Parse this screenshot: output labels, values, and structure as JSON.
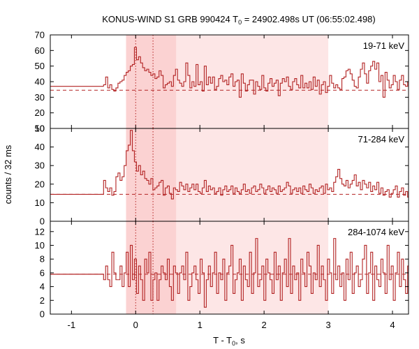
{
  "chart_data": {
    "type": "line",
    "title_main": "KONUS-WIND S1 GRB 990424 T",
    "title_sub": "0",
    "title_rest": " = 24902.498s UT (06:55:02.498)",
    "xlabel_main": "T - T",
    "xlabel_sub": "0",
    "xlabel_rest": ", s",
    "ylabel": "counts / 32 ms",
    "xlim": [
      -1.33,
      4.25
    ],
    "x_ticks": [
      -1,
      0,
      1,
      2,
      3,
      4
    ],
    "x_tick_labels": [
      "-1",
      "0",
      "1",
      "2",
      "3",
      "4"
    ],
    "bin_width": 0.032,
    "shaded_regions": [
      {
        "from": -0.15,
        "to": 3.0,
        "color": "#fde6e6"
      },
      {
        "from": -0.15,
        "to": 0.63,
        "color": "#fbd2d2"
      }
    ],
    "markers": [
      0.0,
      0.27
    ],
    "line_color": "#b22222",
    "panels": [
      {
        "name": "19-71 keV",
        "ylim": [
          10,
          70
        ],
        "y_ticks": [
          10,
          20,
          30,
          40,
          50,
          60,
          70
        ],
        "y_tick_labels": [
          "10",
          "20",
          "30",
          "40",
          "50",
          "60",
          "70"
        ],
        "background_level": 34.5,
        "pre_level": 37.0,
        "values": [
          38,
          43,
          36,
          38,
          35,
          34,
          36,
          39,
          40,
          41,
          44,
          46,
          47,
          50,
          51,
          62,
          54,
          56,
          52,
          49,
          47,
          48,
          46,
          44,
          45,
          42,
          43,
          47,
          44,
          36,
          38,
          39,
          40,
          37,
          44,
          48,
          41,
          39,
          37,
          40,
          52,
          44,
          36,
          40,
          37,
          51,
          38,
          40,
          34,
          50,
          38,
          43,
          39,
          43,
          35,
          37,
          42,
          44,
          40,
          41,
          38,
          43,
          45,
          37,
          40,
          41,
          30,
          45,
          39,
          34,
          38,
          41,
          41,
          32,
          40,
          37,
          35,
          44,
          36,
          34,
          39,
          42,
          37,
          39,
          41,
          31,
          39,
          42,
          40,
          43,
          37,
          35,
          40,
          42,
          38,
          36,
          44,
          36,
          39,
          36,
          40,
          35,
          43,
          37,
          41,
          32,
          38,
          40,
          33,
          37,
          44,
          39,
          36,
          38,
          36,
          35,
          42,
          43,
          47,
          48,
          45,
          41,
          37,
          36,
          43,
          48,
          52,
          45,
          39,
          47,
          50,
          53,
          48,
          52,
          40,
          44,
          30,
          46,
          41,
          36,
          38,
          44,
          40,
          35,
          41,
          44,
          38,
          37,
          40,
          39,
          42,
          45,
          34,
          38,
          39,
          42,
          44,
          40,
          44
        ]
      },
      {
        "name": "71-284 keV",
        "ylim": [
          0,
          50
        ],
        "y_ticks": [
          0,
          10,
          20,
          30,
          40,
          50
        ],
        "y_tick_labels": [
          "0",
          "10",
          "20",
          "30",
          "40",
          "50"
        ],
        "background_level": 14.5,
        "pre_level": 14.5,
        "values": [
          22,
          18,
          16,
          18,
          14,
          16,
          24,
          26,
          22,
          24,
          30,
          38,
          41,
          49,
          38,
          32,
          27,
          30,
          25,
          27,
          23,
          22,
          20,
          23,
          17,
          18,
          19,
          21,
          22,
          14,
          18,
          19,
          15,
          12,
          18,
          17,
          16,
          21,
          19,
          17,
          20,
          16,
          18,
          20,
          17,
          20,
          16,
          15,
          18,
          22,
          16,
          19,
          17,
          18,
          15,
          16,
          18,
          14,
          17,
          19,
          16,
          17,
          19,
          15,
          18,
          16,
          15,
          17,
          20,
          16,
          17,
          15,
          18,
          19,
          16,
          17,
          20,
          18,
          15,
          17,
          19,
          16,
          18,
          17,
          15,
          19,
          16,
          17,
          18,
          21,
          19,
          15,
          17,
          18,
          16,
          18,
          15,
          19,
          17,
          16,
          20,
          18,
          15,
          17,
          16,
          18,
          19,
          15,
          20,
          17,
          18,
          16,
          21,
          24,
          28,
          23,
          20,
          19,
          22,
          18,
          20,
          22,
          25,
          19,
          21,
          17,
          22,
          20,
          18,
          21,
          16,
          19,
          17,
          21,
          15,
          18,
          14,
          16,
          17,
          13,
          15,
          17,
          19,
          13,
          16,
          18,
          14,
          16,
          13,
          16,
          17,
          20,
          15,
          14,
          17,
          20,
          15,
          17,
          19
        ]
      },
      {
        "name": "284-1074 keV",
        "ylim": [
          0,
          13.5
        ],
        "y_ticks": [
          0,
          2,
          4,
          6,
          8,
          10,
          12
        ],
        "y_tick_labels": [
          "0",
          "2",
          "4",
          "6",
          "8",
          "10",
          "12"
        ],
        "background_level": 5.8,
        "pre_level": 5.8,
        "values": [
          5,
          7,
          5,
          4,
          9,
          6,
          5,
          5,
          7,
          4,
          6,
          9,
          4,
          10,
          5,
          8,
          3,
          7,
          5,
          2,
          8,
          6,
          9,
          2,
          5,
          6,
          2,
          5,
          7,
          6,
          5,
          8,
          4,
          2,
          7,
          6,
          3,
          6,
          7,
          5,
          9,
          2,
          4,
          6,
          7,
          5,
          3,
          8,
          6,
          1,
          5,
          7,
          4,
          6,
          9,
          3,
          6,
          5,
          8,
          2,
          6,
          7,
          10,
          3,
          5,
          6,
          8,
          2,
          7,
          5,
          4,
          9,
          3,
          6,
          11,
          4,
          5,
          7,
          2,
          8,
          6,
          5,
          3,
          9,
          5,
          7,
          2,
          6,
          8,
          4,
          11,
          3,
          7,
          5,
          6,
          2,
          8,
          6,
          4,
          9,
          7,
          3,
          6,
          5,
          10,
          4,
          7,
          5,
          2,
          8,
          6,
          3,
          11,
          5,
          7,
          4,
          6,
          2,
          8,
          5,
          9,
          3,
          6,
          7,
          4,
          5,
          8,
          10,
          3,
          6,
          9,
          2,
          7,
          5,
          4,
          8,
          6,
          3,
          10,
          5,
          7,
          2,
          6,
          9,
          4,
          8,
          5,
          3,
          7,
          6,
          5,
          8,
          4,
          6,
          2,
          5,
          7,
          3,
          1
        ]
      }
    ]
  }
}
